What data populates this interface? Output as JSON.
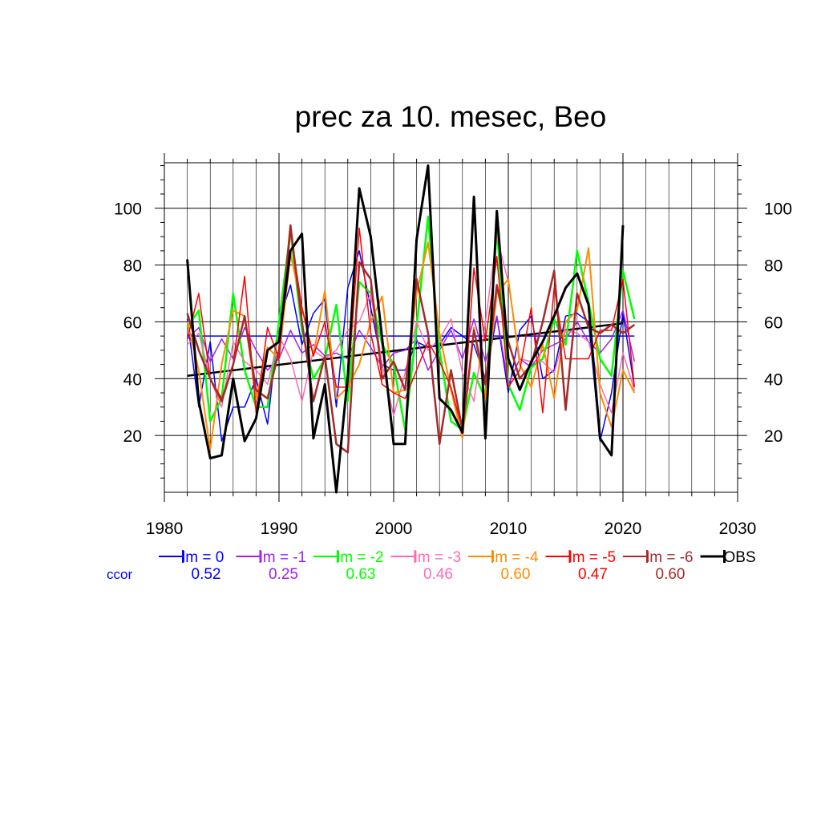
{
  "chart_data": {
    "type": "line",
    "title": "prec za 10. mesec, Beo",
    "xlabel": "",
    "ylabel": "",
    "xlim": [
      1980,
      2030
    ],
    "ylim": [
      0,
      116
    ],
    "x_ticks": [
      1980,
      1990,
      2000,
      2010,
      2020,
      2030
    ],
    "y_ticks": [
      20,
      40,
      60,
      80,
      100
    ],
    "grid": true,
    "legend_placement": "bottom",
    "ccor_label": "ccor",
    "ccor_color": "#0000ff",
    "x": [
      1982,
      1983,
      1984,
      1985,
      1986,
      1987,
      1988,
      1989,
      1990,
      1991,
      1992,
      1993,
      1994,
      1995,
      1996,
      1997,
      1998,
      1999,
      2000,
      2001,
      2002,
      2003,
      2004,
      2005,
      2006,
      2007,
      2008,
      2009,
      2010,
      2011,
      2012,
      2013,
      2014,
      2015,
      2016,
      2017,
      2018,
      2019,
      2020,
      2021
    ],
    "series": [
      {
        "name": "lm = 0",
        "ccor": "0.52",
        "color": "#0000ff",
        "width": 1.5,
        "values": [
          61,
          30,
          53,
          18,
          30,
          30,
          40,
          24,
          60,
          73,
          52,
          63,
          68,
          30,
          72,
          85,
          65,
          45,
          43,
          43,
          53,
          51,
          52,
          58,
          55,
          52,
          40,
          62,
          35,
          57,
          62,
          40,
          43,
          62,
          63,
          60,
          18,
          35,
          63,
          37
        ],
        "trend": [
          55.0,
          55.0
        ]
      },
      {
        "name": "lm = -1",
        "ccor": "0.25",
        "color": "#a020f0",
        "width": 1.5,
        "values": [
          54,
          58,
          46,
          54,
          47,
          58,
          50,
          43,
          47,
          57,
          49,
          52,
          48,
          49,
          47,
          57,
          51,
          44,
          49,
          50,
          54,
          43,
          50,
          57,
          47,
          61,
          46,
          62,
          38,
          47,
          44,
          50,
          52,
          54,
          60,
          53,
          49,
          54,
          64,
          46
        ],
        "trend": []
      },
      {
        "name": "lm = -2",
        "ccor": "0.63",
        "color": "#00ff00",
        "width": 2.5,
        "values": [
          58,
          64,
          25,
          33,
          70,
          43,
          30,
          30,
          60,
          92,
          57,
          40,
          47,
          66,
          32,
          74,
          70,
          52,
          45,
          22,
          58,
          97,
          50,
          25,
          22,
          42,
          33,
          93,
          38,
          29,
          44,
          47,
          61,
          52,
          85,
          67,
          47,
          41,
          78,
          61
        ],
        "trend": []
      },
      {
        "name": "lm = -3",
        "ccor": "0.46",
        "color": "#ff69b4",
        "width": 1.5,
        "values": [
          52,
          56,
          40,
          30,
          53,
          46,
          43,
          38,
          55,
          47,
          32,
          50,
          47,
          50,
          57,
          60,
          70,
          45,
          27,
          42,
          60,
          50,
          54,
          61,
          42,
          32,
          60,
          90,
          74,
          47,
          46,
          46,
          42,
          57,
          56,
          53,
          38,
          28,
          49,
          36
        ],
        "trend": []
      },
      {
        "name": "lm = -4",
        "ccor": "0.60",
        "color": "#ff8c00",
        "width": 2,
        "values": [
          60,
          43,
          15,
          45,
          64,
          62,
          33,
          51,
          47,
          84,
          65,
          48,
          71,
          33,
          37,
          45,
          60,
          69,
          35,
          36,
          70,
          88,
          56,
          36,
          19,
          58,
          33,
          70,
          75,
          45,
          37,
          52,
          33,
          60,
          64,
          86,
          35,
          23,
          43,
          35
        ],
        "trend": []
      },
      {
        "name": "lm = -5",
        "ccor": "0.47",
        "color": "#ff0000",
        "width": 1.5,
        "values": [
          54,
          70,
          40,
          33,
          45,
          76,
          28,
          58,
          47,
          92,
          65,
          48,
          60,
          37,
          37,
          93,
          56,
          38,
          35,
          33,
          43,
          53,
          46,
          37,
          22,
          79,
          53,
          83,
          37,
          43,
          65,
          28,
          72,
          47,
          47,
          47,
          57,
          57,
          75,
          37
        ],
        "trend": []
      },
      {
        "name": "lm = -6",
        "ccor": "0.60",
        "color": "#a52a2a",
        "width": 2.5,
        "values": [
          63,
          50,
          40,
          32,
          45,
          62,
          36,
          33,
          50,
          94,
          60,
          32,
          48,
          17,
          14,
          81,
          75,
          40,
          46,
          36,
          75,
          56,
          17,
          43,
          22,
          57,
          38,
          73,
          53,
          40,
          45,
          60,
          78,
          29,
          70,
          58,
          56,
          59,
          56,
          59
        ],
        "trend": []
      },
      {
        "name": "OBS",
        "ccor": "",
        "color": "#000000",
        "width": 3,
        "values": [
          82,
          32,
          12,
          13,
          40,
          18,
          26,
          50,
          53,
          85,
          91,
          19,
          38,
          0,
          41,
          107,
          90,
          54,
          17,
          17,
          89,
          115,
          33,
          29,
          21,
          104,
          19,
          99,
          47,
          36,
          46,
          53,
          62,
          72,
          77,
          66,
          19,
          13,
          94,
          null
        ],
        "trend": [
          41.0,
          59.5
        ]
      }
    ]
  }
}
